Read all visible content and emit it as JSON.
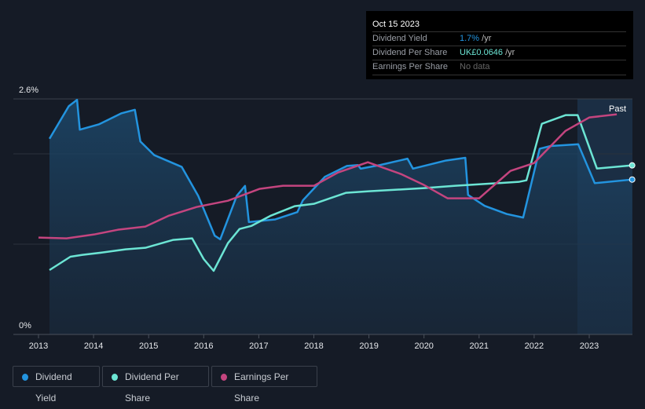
{
  "tooltip": {
    "date": "Oct 15 2023",
    "rows": [
      {
        "label": "Dividend Yield",
        "value": "1.7%",
        "suffix": " /yr"
      },
      {
        "label": "Dividend Per Share",
        "value": "UK£0.0646",
        "suffix": " /yr"
      },
      {
        "label": "Earnings Per Share",
        "value": "No data",
        "suffix": ""
      }
    ]
  },
  "past_label": "Past",
  "colors": {
    "yield": "#2394df",
    "dps": "#6ce5d4",
    "eps": "#c4457f",
    "bg": "#151b26"
  },
  "legend": [
    "Dividend Yield",
    "Dividend Per Share",
    "Earnings Per Share"
  ],
  "chart_data": {
    "type": "line",
    "x_ticks": [
      "2013",
      "2014",
      "2015",
      "2016",
      "2017",
      "2018",
      "2019",
      "2020",
      "2021",
      "2022",
      "2023"
    ],
    "y_ticks": [
      "2.6%",
      "0%"
    ],
    "ylim": [
      0,
      2.6
    ],
    "secondary_ylim": [
      0,
      0.09
    ],
    "series": [
      {
        "name": "Dividend Yield",
        "unit": "%",
        "points": [
          [
            2013.2,
            2.16
          ],
          [
            2013.55,
            2.52
          ],
          [
            2013.7,
            2.59
          ],
          [
            2013.75,
            2.26
          ],
          [
            2014.1,
            2.32
          ],
          [
            2014.5,
            2.44
          ],
          [
            2014.75,
            2.48
          ],
          [
            2014.85,
            2.13
          ],
          [
            2015.1,
            1.98
          ],
          [
            2015.6,
            1.85
          ],
          [
            2015.9,
            1.53
          ],
          [
            2016.2,
            1.09
          ],
          [
            2016.3,
            1.05
          ],
          [
            2016.6,
            1.53
          ],
          [
            2016.75,
            1.64
          ],
          [
            2016.82,
            1.24
          ],
          [
            2017.3,
            1.27
          ],
          [
            2017.7,
            1.35
          ],
          [
            2017.8,
            1.48
          ],
          [
            2018.2,
            1.74
          ],
          [
            2018.6,
            1.86
          ],
          [
            2018.8,
            1.87
          ],
          [
            2018.85,
            1.83
          ],
          [
            2019.2,
            1.87
          ],
          [
            2019.7,
            1.94
          ],
          [
            2019.8,
            1.83
          ],
          [
            2020.4,
            1.92
          ],
          [
            2020.75,
            1.95
          ],
          [
            2020.8,
            1.54
          ],
          [
            2021.1,
            1.42
          ],
          [
            2021.5,
            1.33
          ],
          [
            2021.8,
            1.29
          ],
          [
            2022.1,
            2.05
          ],
          [
            2022.3,
            2.08
          ],
          [
            2022.8,
            2.1
          ],
          [
            2023.1,
            1.67
          ],
          [
            2023.78,
            1.71
          ]
        ]
      },
      {
        "name": "Dividend Per Share",
        "unit": "GBP",
        "points": [
          [
            2013.2,
            0.0246
          ],
          [
            2013.58,
            0.0297
          ],
          [
            2013.8,
            0.0304
          ],
          [
            2014.16,
            0.0313
          ],
          [
            2014.58,
            0.0325
          ],
          [
            2014.94,
            0.0331
          ],
          [
            2015.44,
            0.0361
          ],
          [
            2015.79,
            0.0367
          ],
          [
            2016.0,
            0.0288
          ],
          [
            2016.18,
            0.0243
          ],
          [
            2016.44,
            0.0349
          ],
          [
            2016.65,
            0.0403
          ],
          [
            2016.87,
            0.0415
          ],
          [
            2017.22,
            0.0454
          ],
          [
            2017.65,
            0.049
          ],
          [
            2018.0,
            0.0499
          ],
          [
            2018.58,
            0.0541
          ],
          [
            2019.0,
            0.0547
          ],
          [
            2020.0,
            0.0559
          ],
          [
            2020.57,
            0.0568
          ],
          [
            2021.72,
            0.0583
          ],
          [
            2021.86,
            0.0589
          ],
          [
            2022.14,
            0.0805
          ],
          [
            2022.57,
            0.0838
          ],
          [
            2022.79,
            0.0838
          ],
          [
            2023.14,
            0.0634
          ],
          [
            2023.78,
            0.0646
          ]
        ]
      },
      {
        "name": "Earnings Per Share",
        "unit": "GBP",
        "points": [
          [
            2013.0,
            0.037
          ],
          [
            2013.51,
            0.0367
          ],
          [
            2014.01,
            0.0382
          ],
          [
            2014.44,
            0.04
          ],
          [
            2014.94,
            0.0412
          ],
          [
            2015.37,
            0.0454
          ],
          [
            2015.87,
            0.0487
          ],
          [
            2016.44,
            0.0511
          ],
          [
            2017.01,
            0.0556
          ],
          [
            2017.44,
            0.0568
          ],
          [
            2018.0,
            0.0568
          ],
          [
            2018.44,
            0.0619
          ],
          [
            2018.98,
            0.0658
          ],
          [
            2019.58,
            0.0613
          ],
          [
            2020.0,
            0.0571
          ],
          [
            2020.43,
            0.052
          ],
          [
            2021.0,
            0.052
          ],
          [
            2021.57,
            0.0625
          ],
          [
            2022.0,
            0.0655
          ],
          [
            2022.57,
            0.0778
          ],
          [
            2023.0,
            0.0829
          ],
          [
            2023.5,
            0.0841
          ]
        ]
      }
    ]
  }
}
